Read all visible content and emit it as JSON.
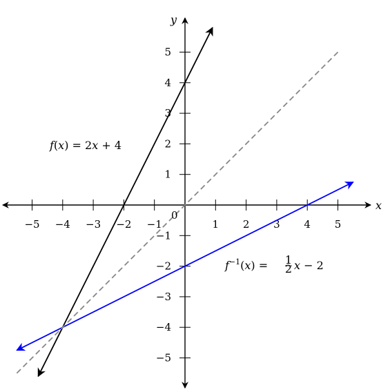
{
  "chart_data": {
    "type": "line",
    "xlabel": "x",
    "ylabel": "y",
    "xlim": [
      -6,
      6
    ],
    "ylim": [
      -6,
      6
    ],
    "grid": false,
    "origin_label": "0",
    "x_ticks": [
      -5,
      -4,
      -3,
      -2,
      -1,
      1,
      2,
      3,
      4,
      5
    ],
    "y_ticks": [
      -5,
      -4,
      -3,
      -2,
      -1,
      1,
      2,
      3,
      4,
      5
    ],
    "x_tick_labels": [
      "−5",
      "−4",
      "−3",
      "−2",
      "−1",
      "1",
      "2",
      "3",
      "4",
      "5"
    ],
    "y_tick_labels": [
      "−5",
      "−4",
      "−3",
      "−2",
      "−1",
      "1",
      "2",
      "3",
      "4",
      "5"
    ],
    "series": [
      {
        "color": "#000000",
        "style": "solid",
        "arrows": true,
        "x": [
          -4.8,
          0.9
        ],
        "y": [
          -5.6,
          5.8
        ]
      },
      {
        "color": "#0000ff",
        "style": "solid",
        "arrows": true,
        "x": [
          -5.5,
          5.5
        ],
        "y": [
          -4.75,
          0.75
        ]
      },
      {
        "color": "#888888",
        "style": "dashed",
        "arrows": false,
        "x": [
          -5.5,
          5.0
        ],
        "y": [
          -5.5,
          5.0
        ]
      }
    ],
    "annotations": {
      "f": {
        "prefix": "f",
        "open": "(",
        "var": "x",
        "rest": ") = 2",
        "var2": "x",
        "tail": " + 4"
      },
      "finv": {
        "prefix": "f",
        "sup": "−1",
        "open": "(",
        "var": "x",
        "eq": ") = ",
        "num": "1",
        "den": "2",
        "var2": "x",
        "tail": " − 2"
      }
    }
  }
}
